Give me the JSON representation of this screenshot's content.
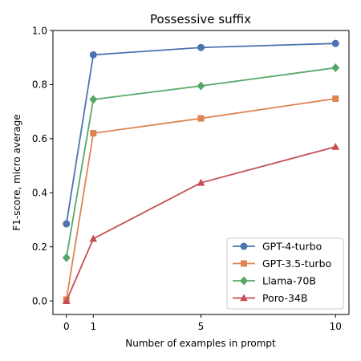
{
  "chart_data": {
    "type": "line",
    "title": "Possessive suffix",
    "xlabel": "Number of examples in prompt",
    "ylabel": "F1-score, micro average",
    "x": [
      0,
      1,
      5,
      10
    ],
    "xticks": [
      0,
      1,
      5,
      10
    ],
    "yticks": [
      0.0,
      0.2,
      0.4,
      0.6,
      0.8,
      1.0
    ],
    "xlim": [
      -0.5,
      10.5
    ],
    "ylim": [
      -0.05,
      1.0
    ],
    "grid": false,
    "legend_position": "lower-right",
    "series": [
      {
        "name": "GPT-4-turbo",
        "values": [
          0.285,
          0.91,
          0.937,
          0.952
        ],
        "color": "#4c72b0",
        "marker": "circle"
      },
      {
        "name": "GPT-3.5-turbo",
        "values": [
          0.005,
          0.62,
          0.675,
          0.748
        ],
        "color": "#dd8452",
        "marker": "square"
      },
      {
        "name": "Llama-70B",
        "values": [
          0.16,
          0.745,
          0.795,
          0.862
        ],
        "color": "#55a868",
        "marker": "diamond"
      },
      {
        "name": "Poro-34B",
        "values": [
          0.0,
          0.23,
          0.437,
          0.57
        ],
        "color": "#c44e52",
        "marker": "triangle"
      }
    ]
  }
}
